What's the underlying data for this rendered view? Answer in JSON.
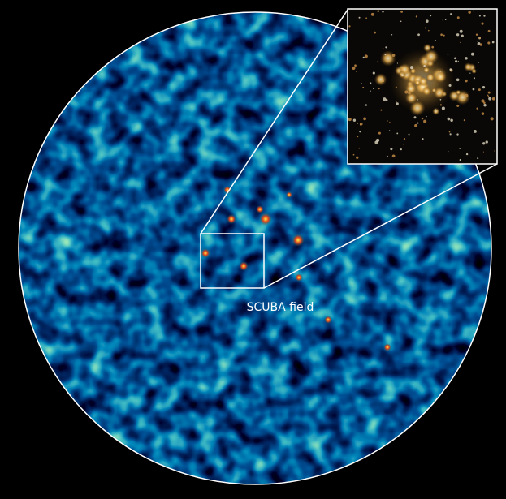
{
  "label": "SCUBA field"
}
